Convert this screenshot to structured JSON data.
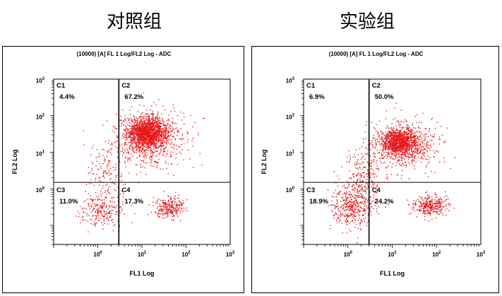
{
  "chart_data": [
    {
      "type": "scatter",
      "group_title": "对照组",
      "title": "(10000) [A] FL 1 Log/FL2 Log - ADC",
      "xlabel": "FL1 Log",
      "ylabel": "FL2 Log",
      "x_scale": "log",
      "y_scale": "log",
      "xlim": [
        0.1,
        1000
      ],
      "ylim": [
        0.03,
        1000
      ],
      "x_ticks": [
        {
          "value": 1,
          "label": "10",
          "sup": "0"
        },
        {
          "value": 10,
          "label": "10",
          "sup": "1"
        },
        {
          "value": 100,
          "label": "10",
          "sup": "2"
        },
        {
          "value": 1000,
          "label": "10",
          "sup": "3"
        }
      ],
      "y_ticks": [
        {
          "value": 1,
          "label": "10",
          "sup": "0"
        },
        {
          "value": 10,
          "label": "10",
          "sup": "1"
        },
        {
          "value": 100,
          "label": "10",
          "sup": "2"
        },
        {
          "value": 1000,
          "label": "10",
          "sup": "3"
        }
      ],
      "gate": {
        "x": 3,
        "y": 1.5
      },
      "quadrants": [
        {
          "name": "C1",
          "percent": "4.4%"
        },
        {
          "name": "C2",
          "percent": "67.2%"
        },
        {
          "name": "C3",
          "percent": "11.0%"
        },
        {
          "name": "C4",
          "percent": "17.3%"
        }
      ],
      "color": "#e41a1c"
    },
    {
      "type": "scatter",
      "group_title": "实验组",
      "title": "(10000) [A] FL 1 Log/FL2 Log - ADC",
      "xlabel": "FL1 Log",
      "ylabel": "FL2 Log",
      "x_scale": "log",
      "y_scale": "log",
      "xlim": [
        0.1,
        1000
      ],
      "ylim": [
        0.03,
        1000
      ],
      "x_ticks": [
        {
          "value": 1,
          "label": "10",
          "sup": "0"
        },
        {
          "value": 10,
          "label": "10",
          "sup": "1"
        },
        {
          "value": 100,
          "label": "10",
          "sup": "2"
        },
        {
          "value": 1000,
          "label": "10",
          "sup": "3"
        }
      ],
      "y_ticks": [
        {
          "value": 1,
          "label": "10",
          "sup": "0"
        },
        {
          "value": 10,
          "label": "10",
          "sup": "1"
        },
        {
          "value": 100,
          "label": "10",
          "sup": "2"
        },
        {
          "value": 1000,
          "label": "10",
          "sup": "3"
        }
      ],
      "gate": {
        "x": 3,
        "y": 1.5
      },
      "quadrants": [
        {
          "name": "C1",
          "percent": "6.9%"
        },
        {
          "name": "C2",
          "percent": "50.0%"
        },
        {
          "name": "C3",
          "percent": "18.9%"
        },
        {
          "name": "C4",
          "percent": "24.2%"
        }
      ],
      "color": "#e41a1c"
    }
  ]
}
